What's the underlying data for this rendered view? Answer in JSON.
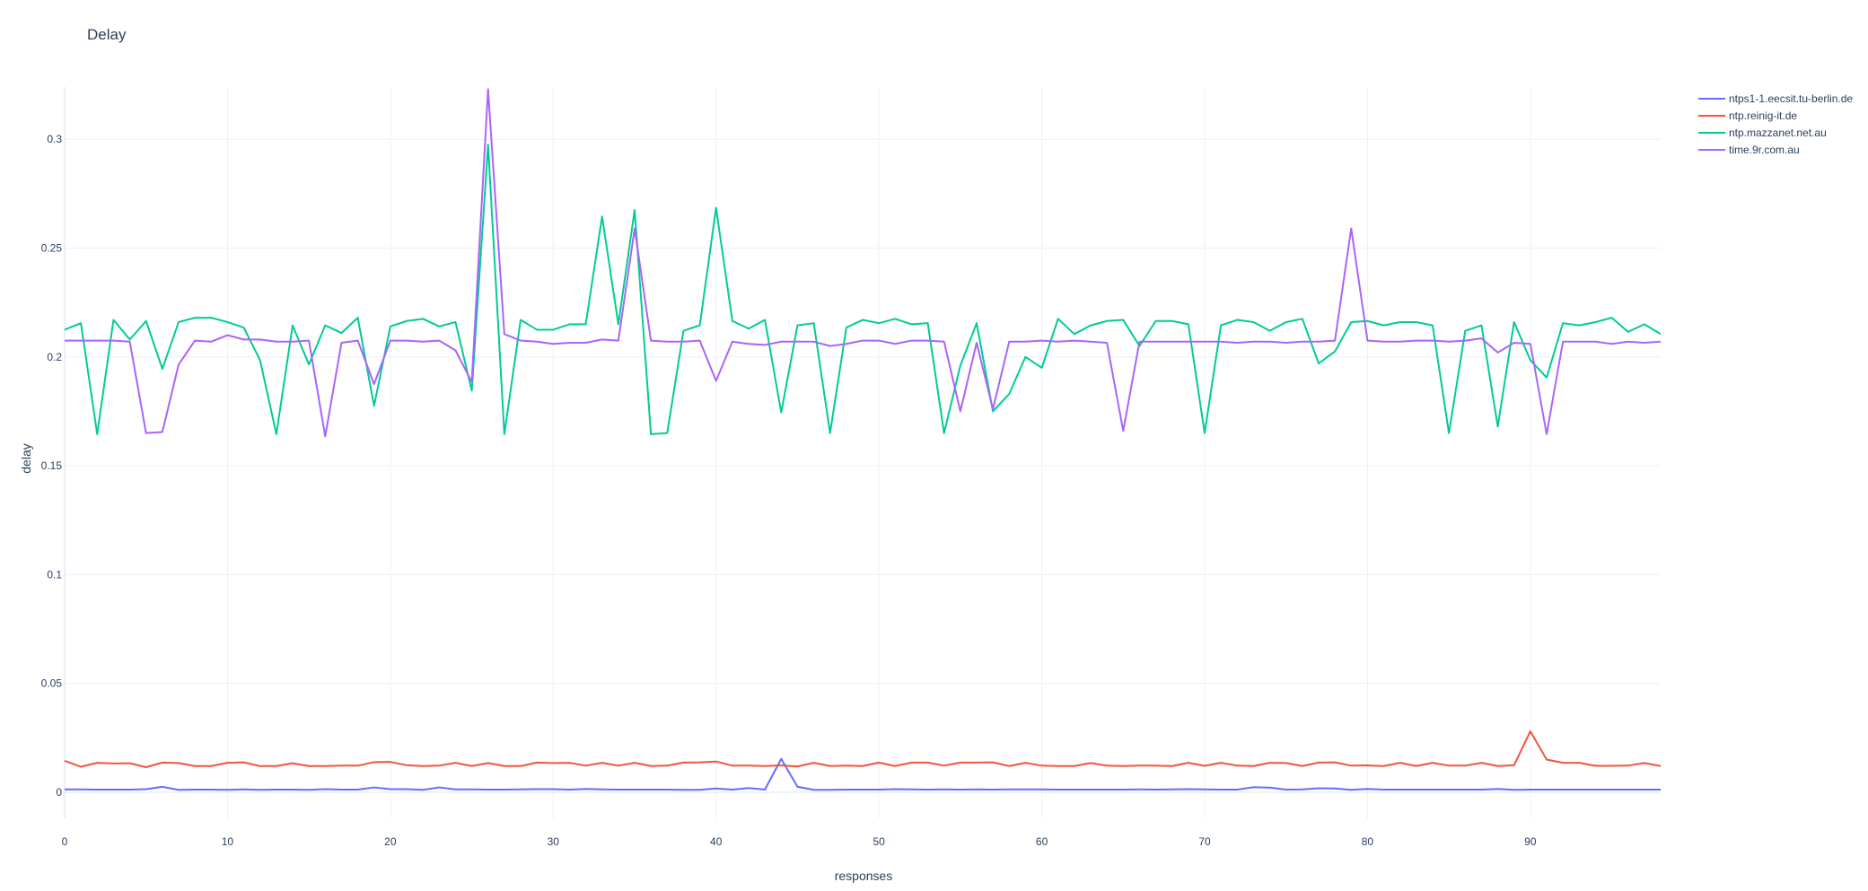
{
  "chart_data": {
    "type": "line",
    "title": "Delay",
    "xlabel": "responses",
    "ylabel": "delay",
    "xlim": [
      0,
      98
    ],
    "ylim": [
      -0.012,
      0.324
    ],
    "x_ticks": [
      "0",
      "10",
      "20",
      "30",
      "40",
      "50",
      "60",
      "70",
      "80",
      "90"
    ],
    "y_ticks": [
      "0",
      "0.05",
      "0.1",
      "0.15",
      "0.2",
      "0.25",
      "0.3"
    ],
    "grid": true,
    "legend_position": "top-right",
    "series": [
      {
        "name": "ntps1-1.eecsit.tu-berlin.de",
        "color": "#636efa",
        "values": [
          0.0013,
          0.0013,
          0.0012,
          0.0012,
          0.0012,
          0.0014,
          0.0025,
          0.0011,
          0.0012,
          0.0012,
          0.0011,
          0.0013,
          0.0011,
          0.0012,
          0.0012,
          0.0011,
          0.0014,
          0.0012,
          0.0012,
          0.0022,
          0.0014,
          0.0014,
          0.0011,
          0.0022,
          0.0013,
          0.0013,
          0.0012,
          0.0012,
          0.0013,
          0.0014,
          0.0014,
          0.0012,
          0.0015,
          0.0013,
          0.0012,
          0.0012,
          0.0012,
          0.0012,
          0.0011,
          0.0011,
          0.0017,
          0.0012,
          0.0019,
          0.0012,
          0.0153,
          0.0025,
          0.0011,
          0.0011,
          0.0012,
          0.0012,
          0.0012,
          0.0014,
          0.0013,
          0.0012,
          0.0013,
          0.0012,
          0.0013,
          0.0012,
          0.0013,
          0.0013,
          0.0013,
          0.0012,
          0.0012,
          0.0012,
          0.0012,
          0.0012,
          0.0013,
          0.0012,
          0.0013,
          0.0014,
          0.0013,
          0.0012,
          0.0012,
          0.0023,
          0.0021,
          0.0012,
          0.0013,
          0.0018,
          0.0017,
          0.0011,
          0.0015,
          0.0012,
          0.0012,
          0.0012,
          0.0012,
          0.0012,
          0.0012,
          0.0012,
          0.0015,
          0.0011,
          0.0012,
          0.0012,
          0.0012,
          0.0012,
          0.0012,
          0.0012,
          0.0012,
          0.0012,
          0.0012
        ]
      },
      {
        "name": "ntp.reinig-it.de",
        "color": "#ef553b",
        "values": [
          0.0144,
          0.0117,
          0.0135,
          0.0132,
          0.0133,
          0.0115,
          0.0136,
          0.0134,
          0.012,
          0.012,
          0.0135,
          0.0137,
          0.012,
          0.012,
          0.0133,
          0.012,
          0.012,
          0.0122,
          0.0122,
          0.0138,
          0.0139,
          0.0124,
          0.012,
          0.0122,
          0.0135,
          0.012,
          0.0134,
          0.012,
          0.012,
          0.0136,
          0.0134,
          0.0135,
          0.0122,
          0.0135,
          0.0122,
          0.0135,
          0.012,
          0.0122,
          0.0136,
          0.0137,
          0.0141,
          0.0122,
          0.0122,
          0.012,
          0.0123,
          0.0118,
          0.0135,
          0.012,
          0.0122,
          0.012,
          0.0136,
          0.012,
          0.0136,
          0.0136,
          0.0122,
          0.0136,
          0.0136,
          0.0137,
          0.012,
          0.0135,
          0.0122,
          0.012,
          0.012,
          0.0134,
          0.0122,
          0.012,
          0.0122,
          0.0122,
          0.012,
          0.0135,
          0.0121,
          0.0135,
          0.0122,
          0.012,
          0.0135,
          0.0134,
          0.012,
          0.0136,
          0.0137,
          0.0122,
          0.0123,
          0.012,
          0.0135,
          0.012,
          0.0135,
          0.0122,
          0.0122,
          0.0135,
          0.012,
          0.0124,
          0.028,
          0.015,
          0.0135,
          0.0135,
          0.0121,
          0.0121,
          0.0122,
          0.0134,
          0.012
        ]
      },
      {
        "name": "ntp.mazzanet.net.au",
        "color": "#00cc96",
        "values": [
          0.2125,
          0.2155,
          0.1645,
          0.217,
          0.208,
          0.2165,
          0.1945,
          0.216,
          0.218,
          0.218,
          0.216,
          0.2135,
          0.1985,
          0.1645,
          0.2145,
          0.1965,
          0.2145,
          0.211,
          0.218,
          0.1775,
          0.214,
          0.2165,
          0.2175,
          0.214,
          0.216,
          0.1845,
          0.2975,
          0.1645,
          0.217,
          0.2125,
          0.2125,
          0.215,
          0.215,
          0.2645,
          0.215,
          0.2675,
          0.1645,
          0.165,
          0.212,
          0.2145,
          0.2685,
          0.2165,
          0.213,
          0.217,
          0.1745,
          0.2145,
          0.2155,
          0.165,
          0.2135,
          0.217,
          0.2155,
          0.2175,
          0.215,
          0.2155,
          0.165,
          0.196,
          0.2155,
          0.175,
          0.183,
          0.2,
          0.195,
          0.2175,
          0.2105,
          0.2145,
          0.2165,
          0.217,
          0.205,
          0.2165,
          0.2165,
          0.215,
          0.165,
          0.2145,
          0.217,
          0.216,
          0.212,
          0.216,
          0.2175,
          0.197,
          0.2025,
          0.216,
          0.2165,
          0.2145,
          0.216,
          0.216,
          0.2145,
          0.165,
          0.212,
          0.2145,
          0.168,
          0.216,
          0.1985,
          0.1905,
          0.2155,
          0.2145,
          0.216,
          0.218,
          0.2115,
          0.215,
          0.2105
        ]
      },
      {
        "name": "time.9r.com.au",
        "color": "#ab63fa",
        "values": [
          0.2075,
          0.2075,
          0.2075,
          0.2075,
          0.207,
          0.165,
          0.1655,
          0.1965,
          0.2075,
          0.207,
          0.21,
          0.208,
          0.208,
          0.207,
          0.207,
          0.2075,
          0.1635,
          0.2065,
          0.2075,
          0.1875,
          0.2075,
          0.2075,
          0.207,
          0.2075,
          0.203,
          0.1885,
          0.323,
          0.2105,
          0.2075,
          0.207,
          0.206,
          0.2065,
          0.2065,
          0.208,
          0.2075,
          0.259,
          0.2075,
          0.207,
          0.207,
          0.2075,
          0.189,
          0.207,
          0.206,
          0.2055,
          0.207,
          0.207,
          0.207,
          0.205,
          0.206,
          0.2075,
          0.2075,
          0.206,
          0.2075,
          0.2075,
          0.207,
          0.175,
          0.2065,
          0.176,
          0.207,
          0.207,
          0.2075,
          0.207,
          0.2075,
          0.207,
          0.2065,
          0.166,
          0.207,
          0.207,
          0.207,
          0.207,
          0.207,
          0.207,
          0.2065,
          0.207,
          0.207,
          0.2065,
          0.207,
          0.207,
          0.2075,
          0.259,
          0.2075,
          0.207,
          0.207,
          0.2075,
          0.2075,
          0.207,
          0.2075,
          0.2085,
          0.202,
          0.2065,
          0.206,
          0.1645,
          0.207,
          0.207,
          0.207,
          0.206,
          0.207,
          0.2065,
          0.207
        ]
      }
    ]
  }
}
